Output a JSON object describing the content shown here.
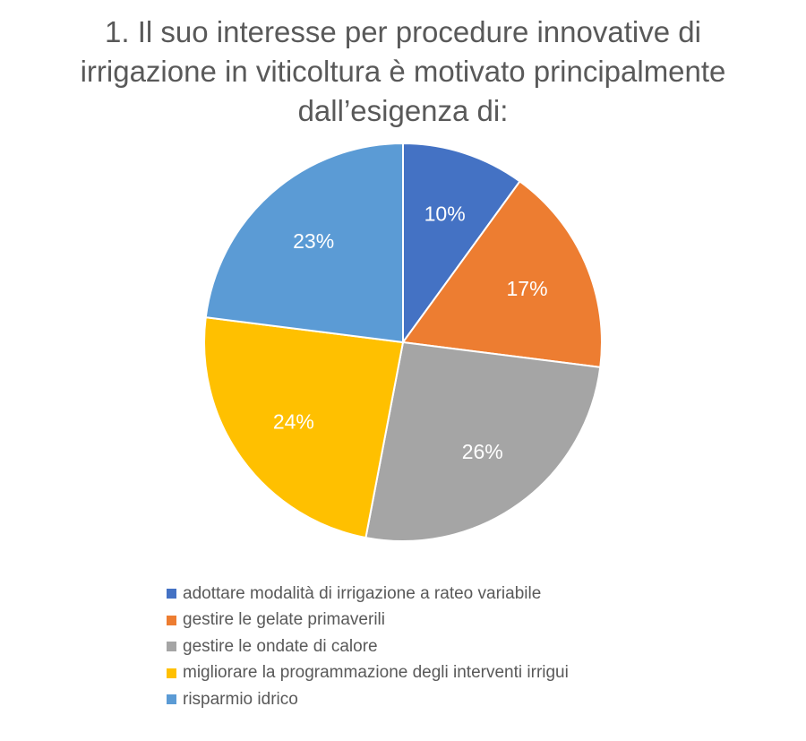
{
  "chart_data": {
    "type": "pie",
    "title_lines": [
      "1. Il suo interesse per procedure innovative di",
      "irrigazione in viticoltura è motivato principalmente",
      "dall’esigenza di:"
    ],
    "slices": [
      {
        "label": "adottare modalità di irrigazione a rateo variabile",
        "value": 10,
        "display": "10%",
        "color": "#4472C4"
      },
      {
        "label": "gestire le gelate primaverili",
        "value": 17,
        "display": "17%",
        "color": "#ED7D31"
      },
      {
        "label": "gestire le ondate di calore",
        "value": 26,
        "display": "26%",
        "color": "#A5A5A5"
      },
      {
        "label": "migliorare la programmazione degli interventi irrigui",
        "value": 24,
        "display": "24%",
        "color": "#FFC000"
      },
      {
        "label": "risparmio idrico",
        "value": 23,
        "display": "23%",
        "color": "#5B9BD5"
      }
    ],
    "legend_position": "bottom",
    "label_color": "#ffffff"
  }
}
